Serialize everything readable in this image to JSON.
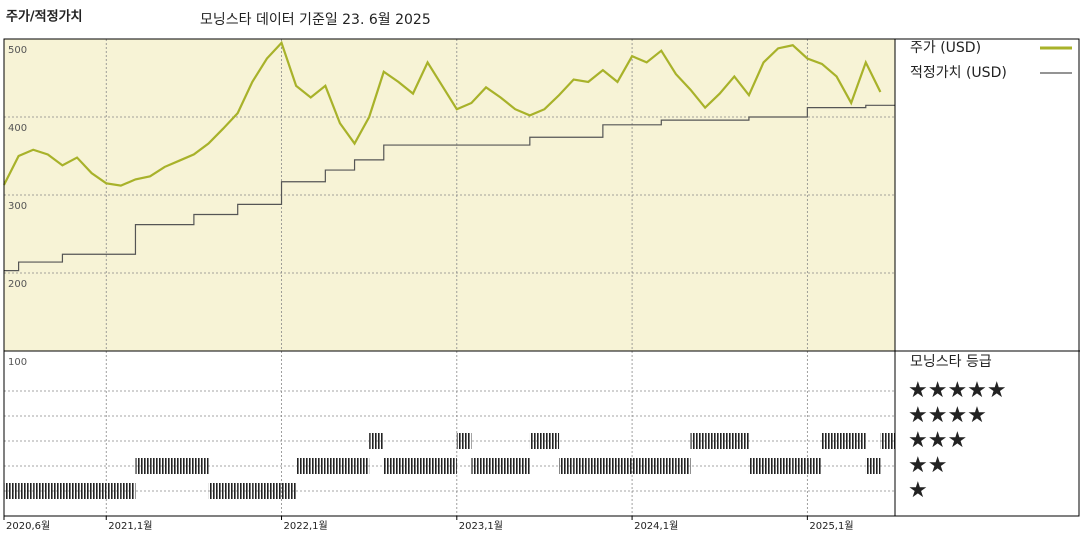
{
  "chart_data": {
    "type": "line",
    "title": "주가/적정가치",
    "subtitle": "모닝스타 데이터 기준일 23. 6월 2025",
    "x": [
      "2020-06",
      "2020-07",
      "2020-08",
      "2020-09",
      "2020-10",
      "2020-11",
      "2020-12",
      "2021-01",
      "2021-02",
      "2021-03",
      "2021-04",
      "2021-05",
      "2021-06",
      "2021-07",
      "2021-08",
      "2021-09",
      "2021-10",
      "2021-11",
      "2021-12",
      "2022-01",
      "2022-02",
      "2022-03",
      "2022-04",
      "2022-05",
      "2022-06",
      "2022-07",
      "2022-08",
      "2022-09",
      "2022-10",
      "2022-11",
      "2022-12",
      "2023-01",
      "2023-02",
      "2023-03",
      "2023-04",
      "2023-05",
      "2023-06",
      "2023-07",
      "2023-08",
      "2023-09",
      "2023-10",
      "2023-11",
      "2023-12",
      "2024-01",
      "2024-02",
      "2024-03",
      "2024-04",
      "2024-05",
      "2024-06",
      "2024-07",
      "2024-08",
      "2024-09",
      "2024-10",
      "2024-11",
      "2024-12",
      "2025-01",
      "2025-02",
      "2025-03",
      "2025-04",
      "2025-05",
      "2025-06"
    ],
    "series": [
      {
        "name": "주가 (USD)",
        "color": "#a8b22a",
        "step": false,
        "values": [
          313,
          350,
          358,
          352,
          338,
          348,
          328,
          315,
          312,
          320,
          324,
          336,
          344,
          352,
          366,
          385,
          405,
          445,
          475,
          495,
          440,
          425,
          440,
          392,
          366,
          400,
          458,
          445,
          430,
          470,
          440,
          410,
          418,
          438,
          425,
          410,
          402,
          410,
          428,
          448,
          445,
          460,
          445,
          478,
          470,
          485,
          455,
          435,
          412,
          430,
          452,
          428,
          470,
          488,
          492,
          475,
          468,
          452,
          418,
          470,
          432
        ]
      },
      {
        "name": "적정가치 (USD)",
        "color": "#555555",
        "step": true,
        "values": [
          203,
          214,
          214,
          214,
          224,
          224,
          224,
          224,
          224,
          262,
          262,
          262,
          262,
          275,
          275,
          275,
          288,
          288,
          288,
          317,
          317,
          317,
          332,
          332,
          345,
          345,
          364,
          364,
          364,
          364,
          364,
          364,
          364,
          364,
          364,
          364,
          374,
          374,
          374,
          374,
          374,
          390,
          390,
          390,
          390,
          396,
          396,
          396,
          396,
          396,
          396,
          400,
          400,
          400,
          400,
          412,
          412,
          412,
          412,
          415,
          415
        ]
      }
    ],
    "ylim": [
      100,
      500
    ],
    "yticks": [
      100,
      200,
      300,
      400,
      500
    ],
    "xlim": [
      "2020-06",
      "2025-07"
    ],
    "xticks": [
      {
        "value": "2020-06",
        "label": "2020,6월"
      },
      {
        "value": "2021-01",
        "label": "2021,1월"
      },
      {
        "value": "2022-01",
        "label": "2022,1월"
      },
      {
        "value": "2023-01",
        "label": "2023,1월"
      },
      {
        "value": "2024-01",
        "label": "2024,1월"
      },
      {
        "value": "2025-01",
        "label": "2025,1월"
      }
    ],
    "grid": true,
    "background": "#f7f3d6",
    "ratings": {
      "title": "모닝스타 등급",
      "labels": [
        "★★★★★",
        "★★★★",
        "★★★",
        "★★",
        "★"
      ],
      "color": "#222222",
      "values": [
        1,
        1,
        1,
        1,
        1,
        1,
        1,
        1,
        1,
        2,
        2,
        2,
        2,
        2,
        1,
        1,
        1,
        1,
        1,
        1,
        2,
        2,
        2,
        2,
        2,
        3,
        2,
        2,
        2,
        2,
        2,
        3,
        2,
        2,
        2,
        2,
        3,
        3,
        2,
        2,
        2,
        2,
        2,
        2,
        2,
        2,
        2,
        3,
        3,
        3,
        3,
        2,
        2,
        2,
        2,
        2,
        3,
        3,
        3,
        2,
        3
      ]
    }
  }
}
